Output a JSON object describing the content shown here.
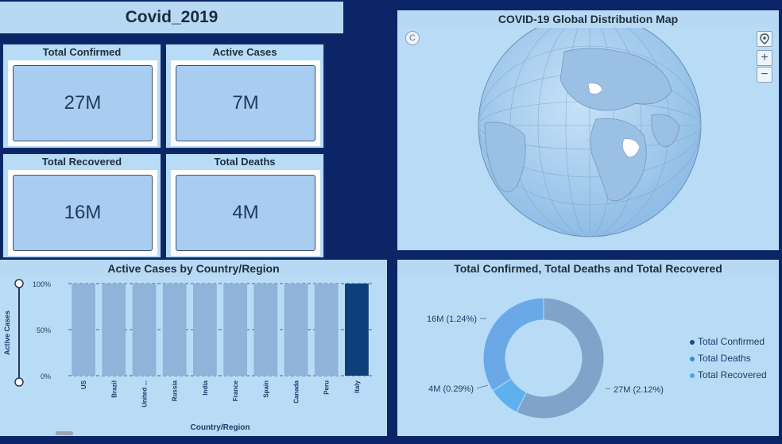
{
  "header": {
    "title": "Covid_2019"
  },
  "kpis": [
    {
      "label": "Total Confirmed",
      "value": "27M"
    },
    {
      "label": "Active Cases",
      "value": "7M"
    },
    {
      "label": "Total Recovered",
      "value": "16M"
    },
    {
      "label": "Total Deaths",
      "value": "4M"
    }
  ],
  "map": {
    "title": "COVID-19 Global Distribution Map",
    "zoom_in": "+",
    "zoom_out": "−"
  },
  "chart_data": [
    {
      "type": "bar",
      "title": "Active Cases by Country/Region",
      "xlabel": "Country/Region",
      "ylabel": "Active Cases",
      "categories": [
        "US",
        "Brazil",
        "United ...",
        "Russia",
        "India",
        "France",
        "Spain",
        "Canada",
        "Peru",
        "Italy"
      ],
      "values": [
        100,
        100,
        100,
        100,
        100,
        100,
        100,
        100,
        100,
        100
      ],
      "highlighted": "Italy",
      "yticks": [
        "0%",
        "50%",
        "100%"
      ],
      "ylim": [
        0,
        100
      ],
      "colors": {
        "bar": "#8fb3d9",
        "highlight": "#0d3f7a"
      }
    },
    {
      "type": "pie",
      "title": "Total Confirmed, Total Deaths and Total Recovered",
      "series": [
        {
          "name": "Total Confirmed",
          "value": 27,
          "label": "27M (2.12%)",
          "color": "#7fa3c9"
        },
        {
          "name": "Total Deaths",
          "value": 4,
          "label": "4M (0.29%)",
          "color": "#5fb0ef"
        },
        {
          "name": "Total Recovered",
          "value": 16,
          "label": "16M (1.24%)",
          "color": "#6aa8e8"
        }
      ],
      "legend": {
        "position": "right",
        "dot_colors": [
          "#1b4a86",
          "#2e8fe0",
          "#4aa6ef"
        ]
      }
    }
  ]
}
